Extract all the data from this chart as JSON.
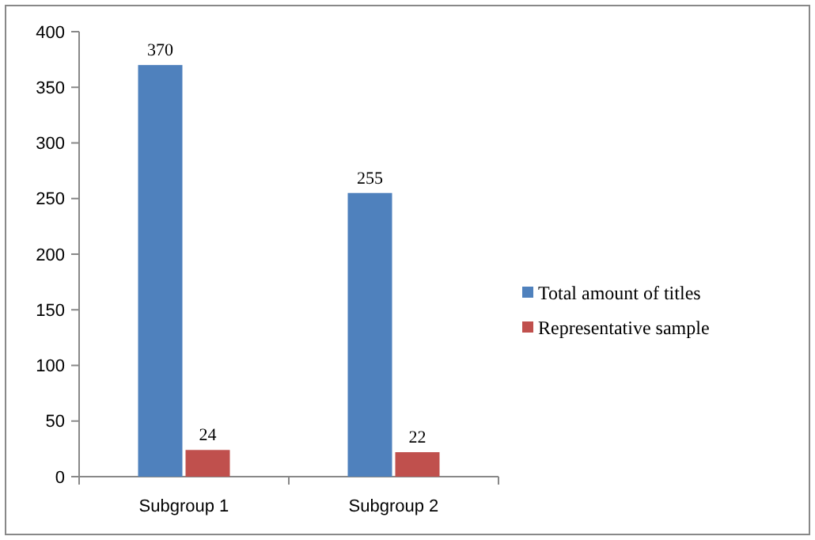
{
  "chart_data": {
    "type": "bar",
    "categories": [
      "Subgroup 1",
      "Subgroup 2"
    ],
    "series": [
      {
        "name": "Total amount of titles",
        "color": "#4f81bd",
        "values": [
          370,
          255
        ]
      },
      {
        "name": "Representative sample",
        "color": "#c0504d",
        "values": [
          24,
          22
        ]
      }
    ],
    "ylim": [
      0,
      400
    ],
    "yticks": [
      0,
      50,
      100,
      150,
      200,
      250,
      300,
      350,
      400
    ],
    "data_labels": true,
    "legend": "right",
    "grid": false
  }
}
